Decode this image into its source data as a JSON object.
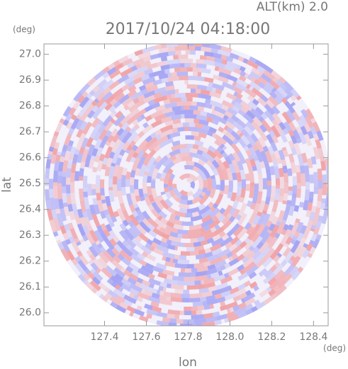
{
  "chart_data": {
    "type": "radar-ppi",
    "title": "2017/10/24 04:18:00",
    "subtitle": "ALT(km) 2.0",
    "x_label": "lon",
    "y_label": "lat",
    "x_unit": "(deg)",
    "y_unit": "(deg)",
    "xlim": [
      127.11,
      128.47
    ],
    "ylim": [
      25.95,
      27.04
    ],
    "xticks": [
      127.4,
      127.6,
      127.8,
      {
        "value": 128,
        "label": "128.0"
      },
      128.2,
      128.4
    ],
    "yticks": [
      {
        "value": 26,
        "label": "26.0"
      },
      26.1,
      26.2,
      26.3,
      26.4,
      26.5,
      26.6,
      26.7,
      26.8,
      26.9,
      {
        "value": 27,
        "label": "27.0"
      }
    ]
  }
}
